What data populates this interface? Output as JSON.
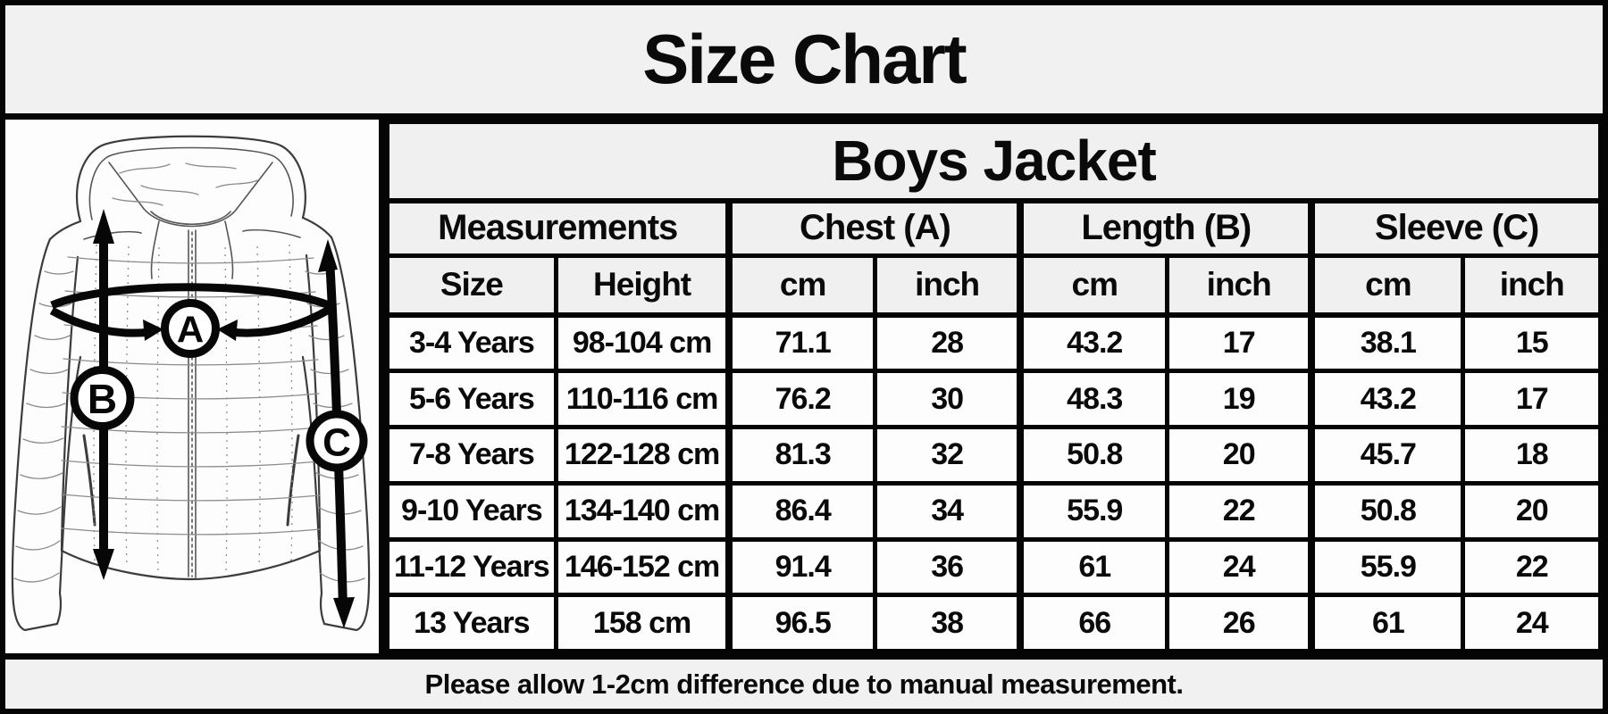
{
  "title": "Size Chart",
  "note": "Please allow 1-2cm difference due to manual measurement.",
  "diagram": {
    "labels": {
      "chest": "A",
      "length": "B",
      "sleeve": "C"
    }
  },
  "table": {
    "product": "Boys Jacket",
    "groups": [
      {
        "label": "Measurements"
      },
      {
        "label": "Chest (A)"
      },
      {
        "label": "Length (B)"
      },
      {
        "label": "Sleeve (C)"
      }
    ],
    "columns": [
      "Size",
      "Height",
      "cm",
      "inch",
      "cm",
      "inch",
      "cm",
      "inch"
    ],
    "rows": [
      [
        "3-4 Years",
        "98-104 cm",
        "71.1",
        "28",
        "43.2",
        "17",
        "38.1",
        "15"
      ],
      [
        "5-6 Years",
        "110-116 cm",
        "76.2",
        "30",
        "48.3",
        "19",
        "43.2",
        "17"
      ],
      [
        "7-8 Years",
        "122-128 cm",
        "81.3",
        "32",
        "50.8",
        "20",
        "45.7",
        "18"
      ],
      [
        "9-10 Years",
        "134-140 cm",
        "86.4",
        "34",
        "55.9",
        "22",
        "50.8",
        "20"
      ],
      [
        "11-12 Years",
        "146-152 cm",
        "91.4",
        "36",
        "61",
        "24",
        "55.9",
        "22"
      ],
      [
        "13 Years",
        "158 cm",
        "96.5",
        "38",
        "66",
        "26",
        "61",
        "24"
      ]
    ]
  },
  "colors": {
    "background": "#f1f1f1",
    "cell_background": "#fdfdfd",
    "border": "#050505",
    "text": "#0a0a0a"
  }
}
